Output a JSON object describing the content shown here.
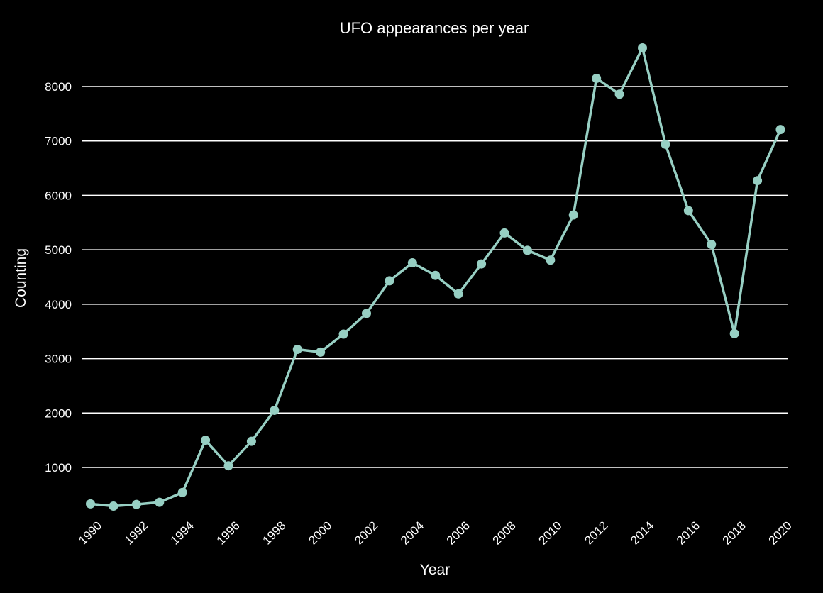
{
  "chart_data": {
    "type": "line",
    "title": "UFO appearances per year",
    "xlabel": "Year",
    "ylabel": "Counting",
    "x_tick_labels": [
      "1990",
      "1992",
      "1994",
      "1996",
      "1998",
      "2000",
      "2002",
      "2004",
      "2006",
      "2008",
      "2010",
      "2012",
      "2014",
      "2016",
      "2018",
      "2020"
    ],
    "y_tick_labels": [
      "1000",
      "2000",
      "3000",
      "4000",
      "5000",
      "6000",
      "7000",
      "8000"
    ],
    "y_ticks": [
      1000,
      2000,
      3000,
      4000,
      5000,
      6000,
      7000,
      8000
    ],
    "xlim": [
      1990,
      2020
    ],
    "ylim": [
      0,
      8800
    ],
    "grid": "horizontal",
    "series": [
      {
        "color": "#97cfc3",
        "points": [
          {
            "x": 1990,
            "y": 330
          },
          {
            "x": 1991,
            "y": 290
          },
          {
            "x": 1992,
            "y": 320
          },
          {
            "x": 1993,
            "y": 360
          },
          {
            "x": 1994,
            "y": 540
          },
          {
            "x": 1995,
            "y": 1500
          },
          {
            "x": 1996,
            "y": 1030
          },
          {
            "x": 1997,
            "y": 1480
          },
          {
            "x": 1998,
            "y": 2050
          },
          {
            "x": 1999,
            "y": 3170
          },
          {
            "x": 2000,
            "y": 3120
          },
          {
            "x": 2001,
            "y": 3450
          },
          {
            "x": 2002,
            "y": 3830
          },
          {
            "x": 2003,
            "y": 4430
          },
          {
            "x": 2004,
            "y": 4760
          },
          {
            "x": 2005,
            "y": 4530
          },
          {
            "x": 2006,
            "y": 4190
          },
          {
            "x": 2007,
            "y": 4740
          },
          {
            "x": 2008,
            "y": 5310
          },
          {
            "x": 2009,
            "y": 4990
          },
          {
            "x": 2010,
            "y": 4810
          },
          {
            "x": 2011,
            "y": 5640
          },
          {
            "x": 2012,
            "y": 8150
          },
          {
            "x": 2013,
            "y": 7860
          },
          {
            "x": 2014,
            "y": 8710
          },
          {
            "x": 2015,
            "y": 6940
          },
          {
            "x": 2016,
            "y": 5720
          },
          {
            "x": 2017,
            "y": 5100
          },
          {
            "x": 2018,
            "y": 3460
          },
          {
            "x": 2019,
            "y": 6270
          },
          {
            "x": 2020,
            "y": 7210
          }
        ]
      }
    ]
  }
}
